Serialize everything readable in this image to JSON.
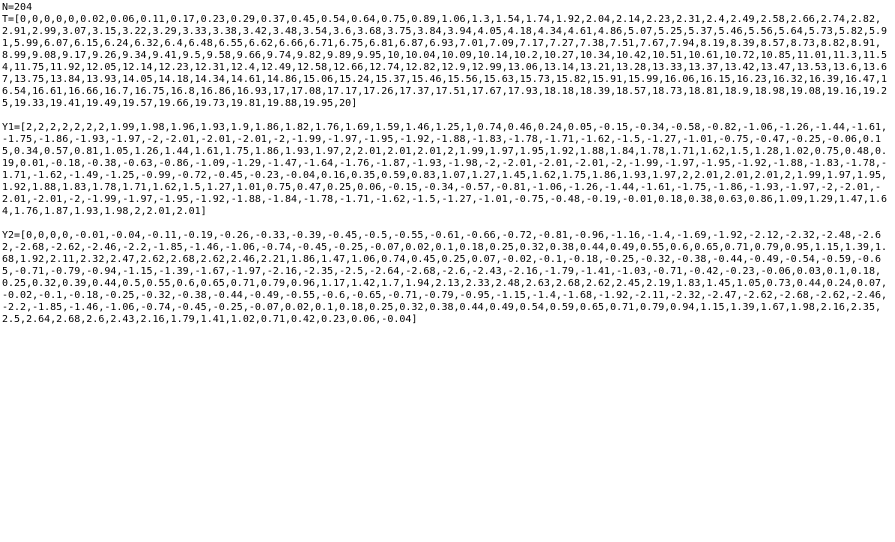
{
  "debug": "data dump page"
}
